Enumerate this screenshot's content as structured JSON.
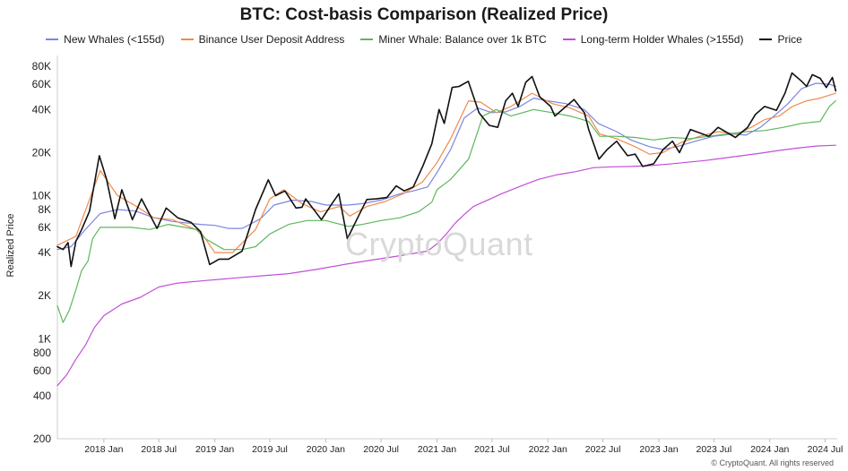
{
  "brand": {
    "watermark": "CryptoQuant",
    "credit": "© CryptoQuant. All rights reserved"
  },
  "chart_data": {
    "type": "line",
    "title": "BTC: Cost-basis Comparison (Realized Price)",
    "xlabel": "",
    "ylabel": "Realized Price",
    "yscale": "log",
    "ylim": [
      200,
      90000
    ],
    "xlim": [
      "2017-08-01",
      "2024-08-10"
    ],
    "grid": false,
    "legend_position": "top",
    "y_ticks": [
      200,
      400,
      600,
      800,
      1000,
      2000,
      4000,
      6000,
      8000,
      10000,
      20000,
      40000,
      60000,
      80000
    ],
    "y_tick_labels": [
      "200",
      "400",
      "600",
      "800",
      "1K",
      "2K",
      "4K",
      "6K",
      "8K",
      "10K",
      "20K",
      "40K",
      "60K",
      "80K"
    ],
    "x_ticks": [
      "2018-01-01",
      "2018-07-01",
      "2019-01-01",
      "2019-07-01",
      "2020-01-01",
      "2020-07-01",
      "2021-01-01",
      "2021-07-01",
      "2022-01-01",
      "2022-07-01",
      "2023-01-01",
      "2023-07-01",
      "2024-01-01",
      "2024-07-01"
    ],
    "x_tick_labels": [
      "2018 Jan",
      "2018 Jul",
      "2019 Jan",
      "2019 Jul",
      "2020 Jan",
      "2020 Jul",
      "2021 Jan",
      "2021 Jul",
      "2022 Jan",
      "2022 Jul",
      "2023 Jan",
      "2023 Jul",
      "2024 Jan",
      "2024 Jul"
    ],
    "series": [
      {
        "name": "New Whales (<155d)",
        "color": "#7b86e0",
        "x": [
          "2017-08-01",
          "2017-09-15",
          "2017-11-01",
          "2017-12-20",
          "2018-02-15",
          "2018-04-15",
          "2018-06-15",
          "2018-08-15",
          "2018-11-15",
          "2019-01-01",
          "2019-02-15",
          "2019-04-01",
          "2019-06-01",
          "2019-07-15",
          "2019-09-15",
          "2019-11-15",
          "2020-01-01",
          "2020-03-15",
          "2020-05-01",
          "2020-07-01",
          "2020-09-01",
          "2020-10-15",
          "2020-12-01",
          "2021-01-01",
          "2021-02-15",
          "2021-04-01",
          "2021-05-15",
          "2021-07-01",
          "2021-08-15",
          "2021-10-01",
          "2021-11-15",
          "2022-01-01",
          "2022-03-01",
          "2022-05-01",
          "2022-06-15",
          "2022-08-15",
          "2022-10-01",
          "2022-12-01",
          "2023-01-15",
          "2023-03-01",
          "2023-05-01",
          "2023-07-01",
          "2023-09-01",
          "2023-10-15",
          "2023-12-01",
          "2024-01-15",
          "2024-03-01",
          "2024-04-15",
          "2024-06-01",
          "2024-07-15",
          "2024-08-05"
        ],
        "values": [
          4200,
          4400,
          5800,
          7500,
          8000,
          7800,
          7000,
          6600,
          6300,
          6200,
          5900,
          5900,
          6900,
          8600,
          9300,
          9100,
          8600,
          8600,
          8800,
          9300,
          10300,
          10800,
          11500,
          14500,
          21000,
          35000,
          41000,
          38000,
          38500,
          42000,
          48000,
          46000,
          44000,
          40000,
          32000,
          28000,
          24500,
          22000,
          21000,
          22000,
          24000,
          26000,
          27000,
          26500,
          30000,
          36000,
          44000,
          56000,
          61000,
          60000,
          58000
        ]
      },
      {
        "name": "Binance User Deposit Address",
        "color": "#f08a4b",
        "x": [
          "2017-08-01",
          "2017-10-01",
          "2017-12-20",
          "2018-02-15",
          "2018-04-15",
          "2018-06-15",
          "2018-08-15",
          "2018-11-15",
          "2019-01-01",
          "2019-03-01",
          "2019-05-15",
          "2019-07-01",
          "2019-08-15",
          "2019-10-15",
          "2019-12-15",
          "2020-02-15",
          "2020-03-20",
          "2020-05-15",
          "2020-07-15",
          "2020-09-15",
          "2020-11-15",
          "2021-01-01",
          "2021-02-15",
          "2021-04-15",
          "2021-05-25",
          "2021-07-15",
          "2021-09-01",
          "2021-11-10",
          "2022-01-15",
          "2022-03-15",
          "2022-05-15",
          "2022-06-20",
          "2022-08-15",
          "2022-10-15",
          "2022-12-01",
          "2023-01-15",
          "2023-03-15",
          "2023-05-15",
          "2023-07-15",
          "2023-09-15",
          "2023-11-01",
          "2023-12-15",
          "2024-02-01",
          "2024-03-15",
          "2024-05-01",
          "2024-06-15",
          "2024-08-05"
        ],
        "values": [
          4500,
          5200,
          15000,
          10000,
          8500,
          7000,
          6800,
          5600,
          4000,
          4000,
          5800,
          9500,
          11000,
          8800,
          7700,
          8400,
          7200,
          8400,
          9100,
          10400,
          12500,
          17000,
          25000,
          46000,
          45000,
          38000,
          42000,
          52000,
          44000,
          41000,
          36000,
          27000,
          25000,
          22000,
          19500,
          20000,
          23500,
          26000,
          28000,
          27000,
          30000,
          34000,
          36000,
          42000,
          46000,
          48000,
          52000
        ]
      },
      {
        "name": "Miner Whale: Balance over 1k BTC",
        "color": "#5cb85c",
        "x": [
          "2017-08-01",
          "2017-08-20",
          "2017-09-10",
          "2017-10-01",
          "2017-10-20",
          "2017-11-10",
          "2017-11-25",
          "2017-12-05",
          "2017-12-20",
          "2018-02-01",
          "2018-04-01",
          "2018-06-01",
          "2018-08-01",
          "2018-11-01",
          "2018-12-01",
          "2019-02-01",
          "2019-04-01",
          "2019-05-15",
          "2019-07-01",
          "2019-09-01",
          "2019-11-01",
          "2020-01-01",
          "2020-03-15",
          "2020-05-01",
          "2020-07-01",
          "2020-09-01",
          "2020-11-01",
          "2020-12-15",
          "2021-01-01",
          "2021-02-15",
          "2021-04-15",
          "2021-06-01",
          "2021-07-15",
          "2021-09-01",
          "2021-11-15",
          "2022-01-15",
          "2022-03-15",
          "2022-05-15",
          "2022-06-20",
          "2022-08-15",
          "2022-10-15",
          "2022-12-15",
          "2023-02-15",
          "2023-04-15",
          "2023-06-15",
          "2023-08-15",
          "2023-10-15",
          "2023-12-15",
          "2024-02-15",
          "2024-04-15",
          "2024-06-15",
          "2024-07-15",
          "2024-08-05"
        ],
        "values": [
          1700,
          1300,
          1600,
          2200,
          3000,
          3500,
          5000,
          5400,
          6000,
          6000,
          6000,
          5800,
          6300,
          5800,
          5000,
          4200,
          4200,
          4400,
          5400,
          6300,
          6700,
          6700,
          6100,
          6300,
          6700,
          7000,
          7700,
          9000,
          11000,
          13000,
          18000,
          36000,
          40000,
          36000,
          40000,
          38000,
          36000,
          33000,
          26000,
          26000,
          25500,
          24500,
          25500,
          25000,
          26000,
          27000,
          28000,
          28500,
          30000,
          32000,
          33000,
          42000,
          46000
        ]
      },
      {
        "name": "Long-term Holder Whales (>155d)",
        "color": "#c24fd9",
        "x": [
          "2017-08-01",
          "2017-09-01",
          "2017-10-01",
          "2017-11-01",
          "2017-12-01",
          "2018-01-01",
          "2018-03-01",
          "2018-05-01",
          "2018-07-01",
          "2018-09-01",
          "2018-12-01",
          "2019-03-01",
          "2019-06-01",
          "2019-09-01",
          "2019-12-01",
          "2020-03-01",
          "2020-06-01",
          "2020-09-01",
          "2020-12-01",
          "2021-01-01",
          "2021-02-01",
          "2021-03-01",
          "2021-04-01",
          "2021-05-01",
          "2021-06-01",
          "2021-07-01",
          "2021-08-01",
          "2021-10-01",
          "2021-12-01",
          "2022-02-01",
          "2022-04-01",
          "2022-06-01",
          "2022-08-01",
          "2022-10-01",
          "2022-12-01",
          "2023-02-01",
          "2023-04-01",
          "2023-06-01",
          "2023-08-01",
          "2023-10-01",
          "2023-12-01",
          "2024-02-01",
          "2024-04-01",
          "2024-06-01",
          "2024-08-05"
        ],
        "values": [
          470,
          560,
          720,
          900,
          1200,
          1450,
          1750,
          1950,
          2300,
          2450,
          2550,
          2650,
          2750,
          2850,
          3050,
          3300,
          3550,
          3800,
          4100,
          4600,
          5400,
          6400,
          7400,
          8400,
          9000,
          9600,
          10300,
          11600,
          13000,
          14000,
          14700,
          15700,
          15900,
          16000,
          16200,
          16600,
          17100,
          17600,
          18300,
          19000,
          19800,
          20700,
          21500,
          22200,
          22500
        ]
      },
      {
        "name": "Price",
        "color": "#111111",
        "x": [
          "2017-08-01",
          "2017-08-20",
          "2017-09-05",
          "2017-09-15",
          "2017-10-01",
          "2017-10-20",
          "2017-11-15",
          "2017-12-17",
          "2018-01-10",
          "2018-02-06",
          "2018-03-01",
          "2018-04-05",
          "2018-05-05",
          "2018-06-25",
          "2018-07-25",
          "2018-09-01",
          "2018-10-15",
          "2018-11-15",
          "2018-12-15",
          "2019-01-15",
          "2019-02-15",
          "2019-04-01",
          "2019-05-15",
          "2019-06-26",
          "2019-07-20",
          "2019-08-20",
          "2019-09-25",
          "2019-10-15",
          "2019-10-27",
          "2019-12-18",
          "2020-01-20",
          "2020-02-13",
          "2020-03-12",
          "2020-04-15",
          "2020-05-15",
          "2020-06-15",
          "2020-07-20",
          "2020-08-20",
          "2020-09-15",
          "2020-10-15",
          "2020-11-15",
          "2020-12-15",
          "2021-01-08",
          "2021-01-25",
          "2021-02-20",
          "2021-03-15",
          "2021-04-14",
          "2021-05-19",
          "2021-06-22",
          "2021-07-20",
          "2021-08-15",
          "2021-09-06",
          "2021-09-25",
          "2021-10-20",
          "2021-11-10",
          "2021-12-05",
          "2022-01-10",
          "2022-01-24",
          "2022-03-28",
          "2022-05-01",
          "2022-05-15",
          "2022-06-18",
          "2022-07-15",
          "2022-08-15",
          "2022-09-20",
          "2022-10-15",
          "2022-11-09",
          "2022-12-15",
          "2023-01-15",
          "2023-02-15",
          "2023-03-10",
          "2023-04-15",
          "2023-06-15",
          "2023-07-15",
          "2023-09-10",
          "2023-10-20",
          "2023-11-15",
          "2023-12-15",
          "2024-01-23",
          "2024-02-20",
          "2024-03-14",
          "2024-04-15",
          "2024-05-01",
          "2024-05-20",
          "2024-06-15",
          "2024-07-05",
          "2024-07-25",
          "2024-08-05"
        ],
        "values": [
          4400,
          4200,
          4700,
          3200,
          4800,
          5800,
          7800,
          19000,
          13000,
          6900,
          11000,
          6800,
          9500,
          5900,
          8200,
          7000,
          6500,
          5600,
          3300,
          3600,
          3600,
          4100,
          8000,
          12900,
          10000,
          10800,
          8200,
          8300,
          9500,
          6800,
          8700,
          10300,
          5000,
          7000,
          9400,
          9500,
          9700,
          11700,
          10800,
          11500,
          16000,
          23000,
          40000,
          32000,
          57000,
          58000,
          63000,
          38000,
          31000,
          30000,
          46000,
          52000,
          42000,
          62000,
          68000,
          49000,
          42000,
          36000,
          47000,
          38000,
          29000,
          18000,
          21000,
          24000,
          19000,
          19500,
          16000,
          16700,
          21000,
          24000,
          20000,
          29000,
          26000,
          30000,
          25500,
          30000,
          37000,
          42000,
          39500,
          52000,
          72000,
          63000,
          58000,
          70000,
          66000,
          57000,
          67000,
          54000
        ]
      }
    ]
  }
}
